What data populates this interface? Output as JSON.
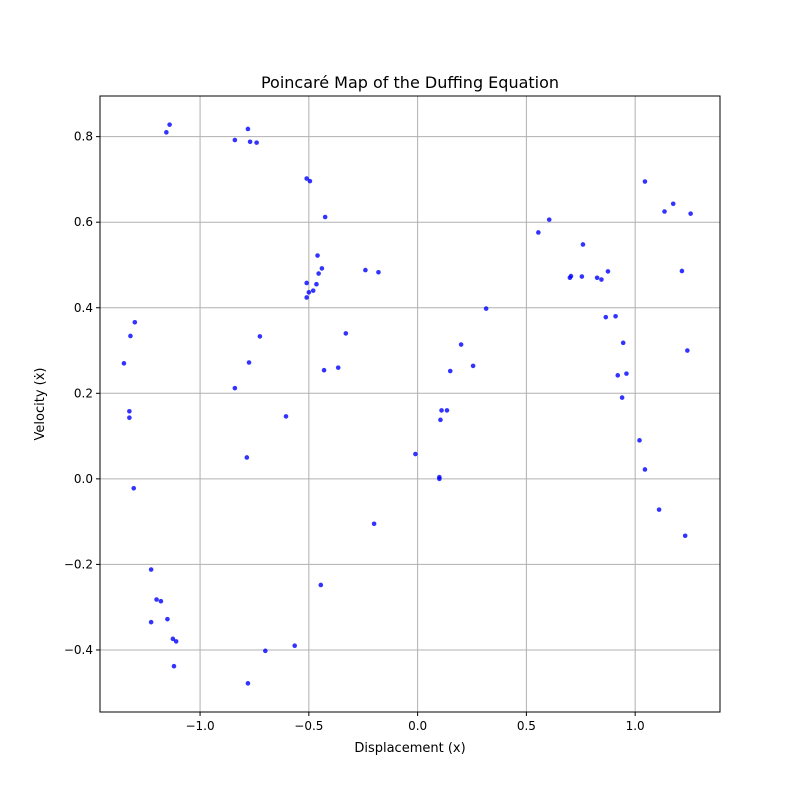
{
  "chart_data": {
    "type": "scatter",
    "title": "Poincaré Map of the Duffing Equation",
    "xlabel": "Displacement (x)",
    "ylabel": "Velocity (ẋ)",
    "xlim": [
      -1.46,
      1.39
    ],
    "ylim": [
      -0.545,
      0.895
    ],
    "grid": true,
    "point_color": "#0000ff",
    "x_ticks": [
      {
        "value": -1.0,
        "label": "−1.0"
      },
      {
        "value": -0.5,
        "label": "−0.5"
      },
      {
        "value": 0.0,
        "label": "0.0"
      },
      {
        "value": 0.5,
        "label": "0.5"
      },
      {
        "value": 1.0,
        "label": "1.0"
      }
    ],
    "y_ticks": [
      {
        "value": -0.4,
        "label": "−0.4"
      },
      {
        "value": -0.2,
        "label": "−0.2"
      },
      {
        "value": 0.0,
        "label": "0.0"
      },
      {
        "value": 0.2,
        "label": "0.2"
      },
      {
        "value": 0.4,
        "label": "0.4"
      },
      {
        "value": 0.6,
        "label": "0.6"
      },
      {
        "value": 0.8,
        "label": "0.8"
      }
    ],
    "points": [
      [
        -1.14,
        0.828
      ],
      [
        -1.155,
        0.81
      ],
      [
        -0.78,
        0.818
      ],
      [
        -0.84,
        0.792
      ],
      [
        -0.77,
        0.788
      ],
      [
        -0.74,
        0.786
      ],
      [
        -0.51,
        0.702
      ],
      [
        -0.495,
        0.696
      ],
      [
        -0.425,
        0.612
      ],
      [
        -0.46,
        0.522
      ],
      [
        -0.44,
        0.492
      ],
      [
        -0.455,
        0.48
      ],
      [
        -0.51,
        0.458
      ],
      [
        -0.465,
        0.455
      ],
      [
        -0.48,
        0.44
      ],
      [
        -0.5,
        0.436
      ],
      [
        -0.51,
        0.424
      ],
      [
        -0.24,
        0.488
      ],
      [
        -0.18,
        0.483
      ],
      [
        -0.33,
        0.34
      ],
      [
        -0.365,
        0.26
      ],
      [
        -0.43,
        0.254
      ],
      [
        -1.3,
        0.366
      ],
      [
        -1.32,
        0.334
      ],
      [
        -1.35,
        0.27
      ],
      [
        -1.325,
        0.158
      ],
      [
        -1.325,
        0.143
      ],
      [
        -1.305,
        -0.022
      ],
      [
        -0.725,
        0.333
      ],
      [
        -0.775,
        0.272
      ],
      [
        -0.84,
        0.212
      ],
      [
        -0.605,
        0.146
      ],
      [
        -0.785,
        0.05
      ],
      [
        -1.225,
        -0.212
      ],
      [
        -1.2,
        -0.282
      ],
      [
        -1.18,
        -0.286
      ],
      [
        -1.225,
        -0.335
      ],
      [
        -1.15,
        -0.328
      ],
      [
        -1.125,
        -0.374
      ],
      [
        -1.11,
        -0.38
      ],
      [
        -1.12,
        -0.438
      ],
      [
        -0.7,
        -0.402
      ],
      [
        -0.565,
        -0.39
      ],
      [
        -0.78,
        -0.478
      ],
      [
        -0.445,
        -0.248
      ],
      [
        -0.2,
        -0.105
      ],
      [
        -0.01,
        0.058
      ],
      [
        0.1,
        0.004
      ],
      [
        0.1,
        0.0
      ],
      [
        0.11,
        0.16
      ],
      [
        0.105,
        0.138
      ],
      [
        0.135,
        0.16
      ],
      [
        0.15,
        0.252
      ],
      [
        0.2,
        0.314
      ],
      [
        0.255,
        0.264
      ],
      [
        0.315,
        0.398
      ],
      [
        0.555,
        0.576
      ],
      [
        0.605,
        0.606
      ],
      [
        0.76,
        0.548
      ],
      [
        0.705,
        0.474
      ],
      [
        0.7,
        0.47
      ],
      [
        0.755,
        0.473
      ],
      [
        0.825,
        0.47
      ],
      [
        0.845,
        0.466
      ],
      [
        0.875,
        0.485
      ],
      [
        0.865,
        0.378
      ],
      [
        0.91,
        0.38
      ],
      [
        0.945,
        0.318
      ],
      [
        0.92,
        0.242
      ],
      [
        0.96,
        0.246
      ],
      [
        0.94,
        0.19
      ],
      [
        1.02,
        0.09
      ],
      [
        1.045,
        0.022
      ],
      [
        1.045,
        0.695
      ],
      [
        1.135,
        0.625
      ],
      [
        1.175,
        0.643
      ],
      [
        1.215,
        0.486
      ],
      [
        1.255,
        0.62
      ],
      [
        1.24,
        0.3
      ],
      [
        1.11,
        -0.072
      ],
      [
        1.23,
        -0.133
      ]
    ]
  }
}
